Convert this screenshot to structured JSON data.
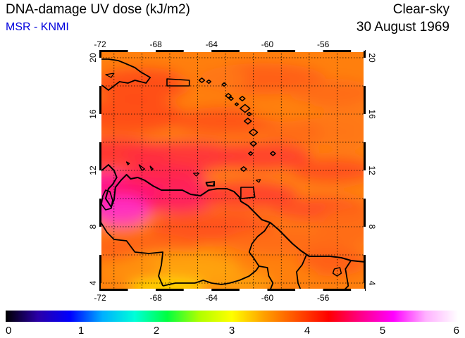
{
  "header": {
    "title": "DNA-damage UV dose (kJ/m2)",
    "credit": "MSR - KNMI",
    "condition": "Clear-sky",
    "date": "30 August 1969"
  },
  "colors": {
    "credit": "#0000dd",
    "frame": "#000000",
    "grid": "#000000",
    "coast": "#000000",
    "colorbar_stops": [
      "#000000",
      "#2a00a8",
      "#0000ff",
      "#00b0ff",
      "#00ffd8",
      "#00ff40",
      "#b0ff00",
      "#ffff00",
      "#ffa000",
      "#ff5000",
      "#ff0000",
      "#ff0088",
      "#ff00ff",
      "#ffb0ff",
      "#ffffff"
    ]
  },
  "map": {
    "lon_range": [
      -72,
      -53
    ],
    "lat_range": [
      3.5,
      20.5
    ],
    "lon_ticks": [
      -72,
      -68,
      -64,
      -60,
      -56
    ],
    "lat_ticks": [
      4,
      8,
      12,
      16,
      20
    ],
    "lon_tick_labels": [
      "-72",
      "-68",
      "-64",
      "-60",
      "-56"
    ],
    "lat_tick_labels": [
      "4",
      "8",
      "12",
      "16",
      "20"
    ],
    "grid_lines": "dotted",
    "variable": "DNA-damage UV dose",
    "units": "kJ/m2"
  },
  "colorbar": {
    "min": 0,
    "max": 6,
    "ticks": [
      0,
      1,
      2,
      3,
      4,
      5,
      6
    ],
    "tick_labels": [
      "0",
      "1",
      "2",
      "3",
      "4",
      "5",
      "6"
    ]
  }
}
